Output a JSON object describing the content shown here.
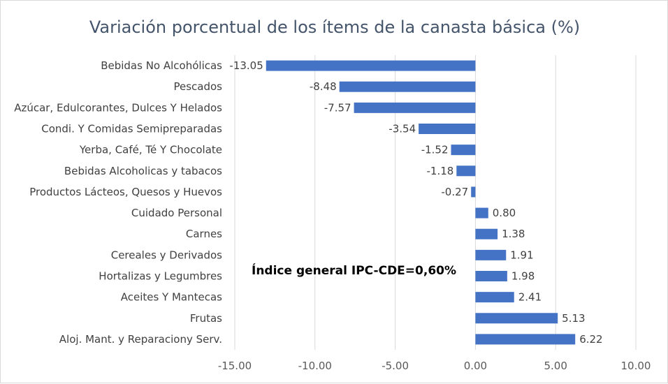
{
  "chart_data": {
    "type": "bar",
    "orientation": "horizontal",
    "title": "Variación porcentual de los ítems de la canasta básica (%)",
    "categories": [
      "Bebidas No Alcohólicas",
      "Pescados",
      "Azúcar, Edulcorantes, Dulces Y Helados",
      "Condi. Y Comidas Semipreparadas",
      "Yerba, Café, Té Y Chocolate",
      "Bebidas Alcoholicas y tabacos",
      "Productos Lácteos, Quesos y Huevos",
      "Cuidado Personal",
      "Carnes",
      "Cereales y Derivados",
      "Hortalizas y Legumbres",
      "Aceites Y Mantecas",
      "Frutas",
      "Aloj. Mant. y Reparaciony Serv."
    ],
    "values": [
      -13.05,
      -8.48,
      -7.57,
      -3.54,
      -1.52,
      -1.18,
      -0.27,
      0.8,
      1.38,
      1.91,
      1.98,
      2.41,
      5.13,
      6.22
    ],
    "data_labels": [
      "-13.05",
      "-8.48",
      "-7.57",
      "-3.54",
      "-1.52",
      "-1.18",
      "-0.27",
      "0.80",
      "1.38",
      "1.91",
      "1.98",
      "2.41",
      "5.13",
      "6.22"
    ],
    "xlim": [
      -15,
      10
    ],
    "xticks": [
      -15,
      -10,
      -5,
      0,
      5,
      10
    ],
    "xtick_labels": [
      "-15.00",
      "-10.00",
      "-5.00",
      "0.00",
      "5.00",
      "10.00"
    ],
    "grid": "vertical",
    "bar_color": "#4472c4",
    "annotation": "Índice general IPC-CDE=0,60%"
  }
}
